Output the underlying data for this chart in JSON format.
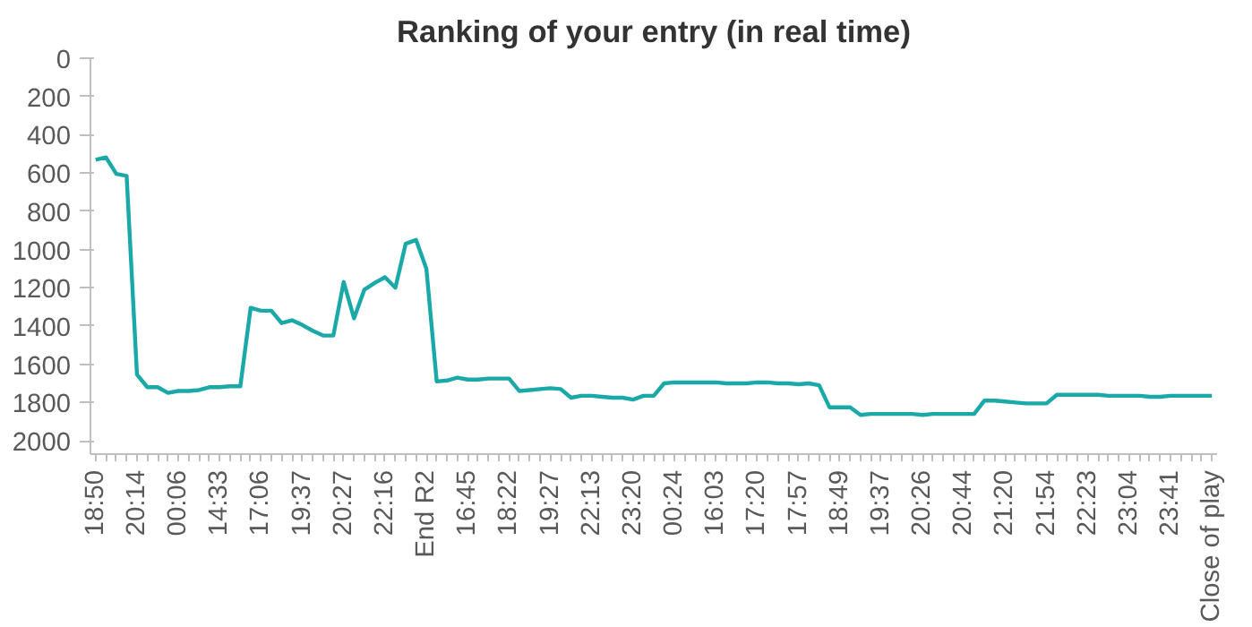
{
  "chart_data": {
    "type": "line",
    "title": "Ranking of your entry (in real time)",
    "categories": [
      "18:50",
      null,
      null,
      null,
      "20:14",
      null,
      null,
      null,
      "00:06",
      null,
      null,
      null,
      "14:33",
      null,
      null,
      null,
      "17:06",
      null,
      null,
      null,
      "19:37",
      null,
      null,
      null,
      "20:27",
      null,
      null,
      null,
      "22:16",
      null,
      null,
      null,
      "End R2",
      null,
      null,
      null,
      "16:45",
      null,
      null,
      null,
      "18:22",
      null,
      null,
      null,
      "19:27",
      null,
      null,
      null,
      "22:13",
      null,
      null,
      null,
      "23:20",
      null,
      null,
      null,
      "00:24",
      null,
      null,
      null,
      "16:03",
      null,
      null,
      null,
      "17:20",
      null,
      null,
      null,
      "17:57",
      null,
      null,
      null,
      "18:49",
      null,
      null,
      null,
      "19:37",
      null,
      null,
      null,
      "20:26",
      null,
      null,
      null,
      "20:44",
      null,
      null,
      null,
      "21:20",
      null,
      null,
      null,
      "21:54",
      null,
      null,
      null,
      "22:23",
      null,
      null,
      null,
      "23:04",
      null,
      null,
      null,
      "23:41",
      null,
      null,
      null,
      "Close of play"
    ],
    "series": [
      {
        "color": "#1aa8a8",
        "values": [
          531,
          518,
          605,
          615,
          1654,
          1720,
          1720,
          1750,
          1740,
          1740,
          1735,
          1720,
          1720,
          1715,
          1715,
          1305,
          1320,
          1320,
          1385,
          1370,
          1395,
          1425,
          1450,
          1450,
          1170,
          1360,
          1210,
          1175,
          1145,
          1200,
          970,
          950,
          1100,
          1690,
          1685,
          1670,
          1680,
          1680,
          1675,
          1675,
          1675,
          1740,
          1735,
          1730,
          1725,
          1730,
          1775,
          1765,
          1765,
          1770,
          1775,
          1775,
          1785,
          1765,
          1765,
          1700,
          1695,
          1695,
          1695,
          1695,
          1695,
          1700,
          1700,
          1700,
          1695,
          1695,
          1700,
          1700,
          1705,
          1700,
          1710,
          1825,
          1825,
          1825,
          1865,
          1860,
          1860,
          1860,
          1860,
          1860,
          1865,
          1860,
          1860,
          1860,
          1860,
          1860,
          1790,
          1790,
          1795,
          1800,
          1805,
          1805,
          1805,
          1760,
          1760,
          1760,
          1760,
          1760,
          1765,
          1765,
          1765,
          1765,
          1770,
          1770,
          1765,
          1765,
          1765,
          1765,
          1765
        ]
      }
    ],
    "ylim": [
      2070,
      0
    ],
    "yticks": [
      0,
      200,
      400,
      600,
      800,
      1000,
      1200,
      1400,
      1600,
      1800,
      2000
    ],
    "grid": false,
    "marker": "none",
    "line_style": "solid"
  }
}
